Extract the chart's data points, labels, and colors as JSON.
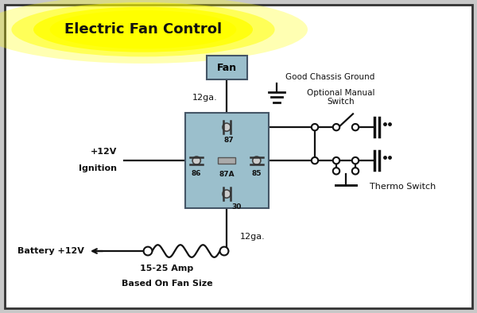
{
  "bg_color": "#c8c8c8",
  "inner_bg": "#ffffff",
  "title_text": "Electric Fan Control",
  "title_bg": "#ffff00",
  "title_glow": "#ffff88",
  "relay_color": "#9bbfcc",
  "fan_color": "#9bbfcc",
  "line_color": "#111111",
  "lw": 1.6,
  "labels": {
    "good_chassis_ground": "Good Chassis Ground",
    "optional_manual_switch": "Optional Manual\nSwitch",
    "thermo_switch": "Thermo Switch",
    "ignition_line1": "+12V",
    "ignition_line2": "Ignition",
    "battery": "Battery +12V",
    "amp_line1": "15-25 Amp",
    "amp_line2": "Based On Fan Size",
    "wire_top": "12ga.",
    "wire_bot": "12ga.",
    "fan": "Fan",
    "p87": "87",
    "p86": "86",
    "p87a": "87A",
    "p85": "85",
    "p30": "30"
  },
  "xlim": [
    0,
    10
  ],
  "ylim": [
    0,
    6.57
  ],
  "figsize": [
    6.0,
    3.94
  ],
  "dpi": 100
}
